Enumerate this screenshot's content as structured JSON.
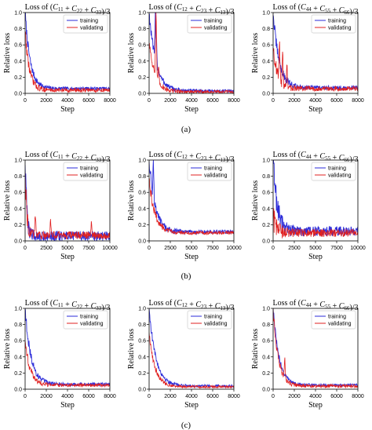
{
  "colors": {
    "training": "#2b2bd9",
    "validating": "#e02020",
    "axis": "#000000"
  },
  "chart_data": [
    {
      "type": "line",
      "row": 0,
      "col": 0,
      "title": "Loss of (C11 + C22 + C33)/3",
      "xlabel": "Step",
      "ylabel": "Relative loss",
      "xlim": [
        0,
        8000
      ],
      "ylim": [
        0,
        1.0
      ],
      "xticks": [
        0,
        2000,
        4000,
        6000,
        8000
      ],
      "yticks": [
        0.0,
        0.2,
        0.4,
        0.6,
        0.8,
        1.0
      ],
      "legend": "top-right",
      "series": [
        {
          "name": "training",
          "peak": 1.0,
          "floor": 0.06,
          "decay": 0.06,
          "noise": 0.02
        },
        {
          "name": "validating",
          "peak": 0.78,
          "floor": 0.04,
          "decay": 0.05,
          "noise": 0.025
        }
      ]
    },
    {
      "type": "line",
      "row": 0,
      "col": 1,
      "title": "Loss of (C12 + C23 + C13)/3",
      "xlabel": "Step",
      "ylabel": "Relative loss",
      "xlim": [
        0,
        8000
      ],
      "ylim": [
        0,
        1.0
      ],
      "xticks": [
        0,
        2000,
        4000,
        6000,
        8000
      ],
      "yticks": [
        0.0,
        0.2,
        0.4,
        0.6,
        0.8,
        1.0
      ],
      "legend": "top-right",
      "series": [
        {
          "name": "training",
          "peak": 1.0,
          "floor": 0.03,
          "decay": 0.08,
          "noise": 0.02,
          "spikes": [
            [
              600,
              0.7
            ],
            [
              700,
              0.3
            ]
          ]
        },
        {
          "name": "validating",
          "peak": 0.65,
          "floor": 0.02,
          "decay": 0.07,
          "noise": 0.02,
          "spikes": [
            [
              650,
              0.9
            ],
            [
              900,
              0.2
            ]
          ]
        }
      ]
    },
    {
      "type": "line",
      "row": 0,
      "col": 2,
      "title": "Loss of (C44 + C55 + C66)/3",
      "xlabel": "Step",
      "ylabel": "Relative loss",
      "xlim": [
        0,
        8000
      ],
      "ylim": [
        0,
        1.0
      ],
      "xticks": [
        0,
        2000,
        4000,
        6000,
        8000
      ],
      "yticks": [
        0.0,
        0.2,
        0.4,
        0.6,
        0.8,
        1.0
      ],
      "legend": "top-right",
      "series": [
        {
          "name": "training",
          "peak": 1.0,
          "floor": 0.07,
          "decay": 0.07,
          "noise": 0.025
        },
        {
          "name": "validating",
          "peak": 0.6,
          "floor": 0.06,
          "decay": 0.05,
          "noise": 0.03,
          "spikes": [
            [
              600,
              0.5
            ],
            [
              900,
              0.45
            ],
            [
              1300,
              0.3
            ]
          ]
        }
      ]
    },
    {
      "type": "line",
      "row": 1,
      "col": 0,
      "title": "Loss of (C11 + C22 + C33)/3",
      "xlabel": "Step",
      "ylabel": "Relative loss",
      "xlim": [
        0,
        10000
      ],
      "ylim": [
        0,
        1.0
      ],
      "xticks": [
        0,
        2500,
        5000,
        7500,
        10000
      ],
      "yticks": [
        0.0,
        0.2,
        0.4,
        0.6,
        0.8,
        1.0
      ],
      "legend": "top-right",
      "series": [
        {
          "name": "training",
          "peak": 1.0,
          "floor": 0.06,
          "decay": 0.02,
          "noise": 0.06
        },
        {
          "name": "validating",
          "peak": 0.9,
          "floor": 0.07,
          "decay": 0.02,
          "noise": 0.05,
          "spikes": [
            [
              1200,
              0.3
            ],
            [
              3000,
              0.2
            ],
            [
              7800,
              0.15
            ]
          ]
        }
      ]
    },
    {
      "type": "line",
      "row": 1,
      "col": 1,
      "title": "Loss of (C12 + C23 + C13)/3",
      "xlabel": "Step",
      "ylabel": "Relative loss",
      "xlim": [
        0,
        10000
      ],
      "ylim": [
        0,
        1.0
      ],
      "xticks": [
        0,
        2500,
        5000,
        7500,
        10000
      ],
      "yticks": [
        0.0,
        0.2,
        0.4,
        0.6,
        0.8,
        1.0
      ],
      "legend": "top-right",
      "series": [
        {
          "name": "training",
          "peak": 1.0,
          "floor": 0.11,
          "decay": 0.07,
          "noise": 0.025,
          "spikes": [
            [
              500,
              0.5
            ]
          ]
        },
        {
          "name": "validating",
          "peak": 0.75,
          "floor": 0.1,
          "decay": 0.07,
          "noise": 0.02
        }
      ]
    },
    {
      "type": "line",
      "row": 1,
      "col": 2,
      "title": "Loss of (C44 + C55 + C66)/3",
      "xlabel": "Step",
      "ylabel": "Relative loss",
      "xlim": [
        0,
        10000
      ],
      "ylim": [
        0,
        1.0
      ],
      "xticks": [
        0,
        2500,
        5000,
        7500,
        10000
      ],
      "yticks": [
        0.0,
        0.2,
        0.4,
        0.6,
        0.8,
        1.0
      ],
      "legend": "top-right",
      "series": [
        {
          "name": "training",
          "peak": 1.0,
          "floor": 0.12,
          "decay": 0.05,
          "noise": 0.06
        },
        {
          "name": "validating",
          "peak": 0.3,
          "floor": 0.1,
          "decay": 0.04,
          "noise": 0.05
        }
      ]
    },
    {
      "type": "line",
      "row": 2,
      "col": 0,
      "title": "Loss of (C11 + C22 + C33)/3",
      "xlabel": "Step",
      "ylabel": "Relative loss",
      "xlim": [
        0,
        8000
      ],
      "ylim": [
        0,
        1.0
      ],
      "xticks": [
        0,
        2000,
        4000,
        6000,
        8000
      ],
      "yticks": [
        0.0,
        0.2,
        0.4,
        0.6,
        0.8,
        1.0
      ],
      "legend": "top-right",
      "series": [
        {
          "name": "training",
          "peak": 1.0,
          "floor": 0.06,
          "decay": 0.07,
          "noise": 0.02
        },
        {
          "name": "validating",
          "peak": 0.6,
          "floor": 0.05,
          "decay": 0.06,
          "noise": 0.02
        }
      ]
    },
    {
      "type": "line",
      "row": 2,
      "col": 1,
      "title": "Loss of (C12 + C23 + C13)/3",
      "xlabel": "Step",
      "ylabel": "Relative loss",
      "xlim": [
        0,
        8000
      ],
      "ylim": [
        0,
        1.0
      ],
      "xticks": [
        0,
        2000,
        4000,
        6000,
        8000
      ],
      "yticks": [
        0.0,
        0.2,
        0.4,
        0.6,
        0.8,
        1.0
      ],
      "legend": "top-right",
      "series": [
        {
          "name": "training",
          "peak": 1.0,
          "floor": 0.04,
          "decay": 0.08,
          "noise": 0.015
        },
        {
          "name": "validating",
          "peak": 0.7,
          "floor": 0.03,
          "decay": 0.07,
          "noise": 0.015
        }
      ]
    },
    {
      "type": "line",
      "row": 2,
      "col": 2,
      "title": "Loss of (C44 + C55 + C66)/3",
      "xlabel": "Step",
      "ylabel": "Relative loss",
      "xlim": [
        0,
        8000
      ],
      "ylim": [
        0,
        1.0
      ],
      "xticks": [
        0,
        2000,
        4000,
        6000,
        8000
      ],
      "yticks": [
        0.0,
        0.2,
        0.4,
        0.6,
        0.8,
        1.0
      ],
      "legend": "top-right",
      "series": [
        {
          "name": "training",
          "peak": 1.0,
          "floor": 0.05,
          "decay": 0.07,
          "noise": 0.015
        },
        {
          "name": "validating",
          "peak": 1.0,
          "floor": 0.04,
          "decay": 0.06,
          "noise": 0.02,
          "spikes": [
            [
              1100,
              0.25
            ]
          ]
        }
      ]
    }
  ],
  "panel_labels": [
    "(a)",
    "(b)",
    "(c)"
  ]
}
